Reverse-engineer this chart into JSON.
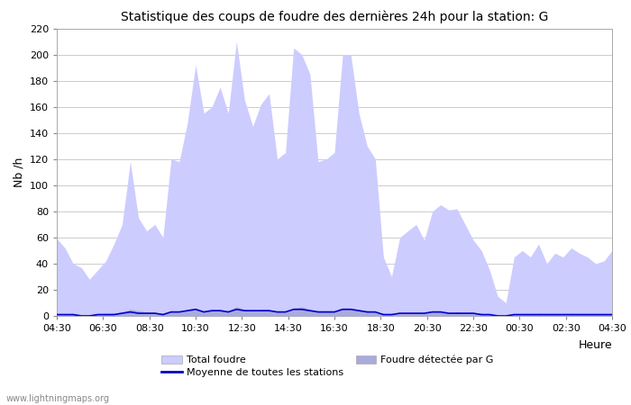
{
  "title": "Statistique des coups de foudre des dernières 24h pour la station: G",
  "xlabel": "Heure",
  "ylabel": "Nb /h",
  "ylim": [
    0,
    220
  ],
  "yticks": [
    0,
    20,
    40,
    60,
    80,
    100,
    120,
    140,
    160,
    180,
    200,
    220
  ],
  "xtick_labels": [
    "04:30",
    "06:30",
    "08:30",
    "10:30",
    "12:30",
    "14:30",
    "16:30",
    "18:30",
    "20:30",
    "22:30",
    "00:30",
    "02:30",
    "04:30"
  ],
  "background_color": "#ffffff",
  "plot_bg_color": "#ffffff",
  "grid_color": "#cccccc",
  "watermark": "www.lightningmaps.org",
  "total_foudre_color": "#ccccff",
  "foudre_detectee_color": "#aaaadd",
  "moyenne_color": "#0000cc",
  "legend_labels": [
    "Total foudre",
    "Moyenne de toutes les stations",
    "Foudre détectée par G"
  ],
  "total_foudre": [
    59,
    52,
    40,
    37,
    28,
    35,
    42,
    55,
    70,
    118,
    75,
    65,
    70,
    60,
    120,
    118,
    148,
    192,
    155,
    160,
    175,
    155,
    210,
    165,
    145,
    162,
    170,
    120,
    125,
    205,
    200,
    185,
    118,
    120,
    125,
    200,
    200,
    155,
    130,
    120,
    45,
    30,
    60,
    65,
    70,
    58,
    80,
    85,
    81,
    82,
    70,
    58,
    50,
    35,
    15,
    10,
    45,
    50,
    45,
    55,
    40,
    48,
    45,
    52,
    48,
    45,
    40,
    42,
    50
  ],
  "foudre_detectee": [
    2,
    1,
    2,
    1,
    1,
    1,
    2,
    2,
    3,
    5,
    4,
    3,
    3,
    2,
    4,
    3,
    5,
    6,
    4,
    5,
    5,
    4,
    7,
    5,
    4,
    5,
    5,
    3,
    3,
    6,
    7,
    5,
    4,
    4,
    4,
    6,
    6,
    5,
    4,
    3,
    2,
    1,
    2,
    2,
    2,
    2,
    3,
    3,
    2,
    3,
    2,
    2,
    2,
    1,
    1,
    0,
    1,
    1,
    1,
    2,
    1,
    1,
    1,
    2,
    1,
    1,
    1,
    1,
    1
  ],
  "moyenne": [
    1,
    1,
    1,
    0,
    0,
    1,
    1,
    1,
    2,
    3,
    2,
    2,
    2,
    1,
    3,
    3,
    4,
    5,
    3,
    4,
    4,
    3,
    5,
    4,
    4,
    4,
    4,
    3,
    3,
    5,
    5,
    4,
    3,
    3,
    3,
    5,
    5,
    4,
    3,
    3,
    1,
    1,
    2,
    2,
    2,
    2,
    3,
    3,
    2,
    2,
    2,
    2,
    1,
    1,
    0,
    0,
    1,
    1,
    1,
    1,
    1,
    1,
    1,
    1,
    1,
    1,
    1,
    1,
    1
  ]
}
